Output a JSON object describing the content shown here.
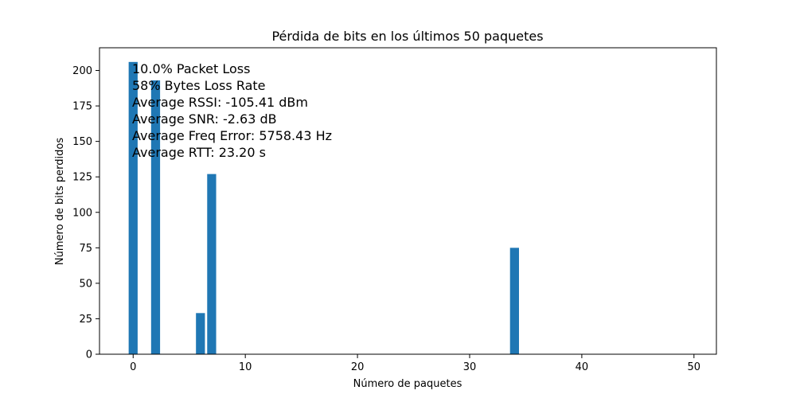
{
  "chart_data": {
    "type": "bar",
    "title": "Pérdida de bits en los últimos 50 paquetes",
    "xlabel": "Número de paquetes",
    "ylabel": "Número de bits perdidos",
    "xlim": [
      -3,
      52
    ],
    "ylim": [
      0,
      216
    ],
    "xticks": [
      0,
      10,
      20,
      30,
      40,
      50
    ],
    "yticks": [
      0,
      25,
      50,
      75,
      100,
      125,
      150,
      175,
      200
    ],
    "bar_color": "#1f77b4",
    "bars": [
      {
        "x": 0,
        "value": 206
      },
      {
        "x": 2,
        "value": 193
      },
      {
        "x": 6,
        "value": 29
      },
      {
        "x": 7,
        "value": 127
      },
      {
        "x": 34,
        "value": 75
      }
    ],
    "annotations": [
      "10.0% Packet Loss",
      "58% Bytes Loss Rate",
      "Average RSSI: -105.41 dBm",
      "Average SNR: -2.63 dB",
      "Average Freq Error: 5758.43 Hz",
      "Average RTT: 23.20 s"
    ],
    "grid": false,
    "legend": "none"
  }
}
